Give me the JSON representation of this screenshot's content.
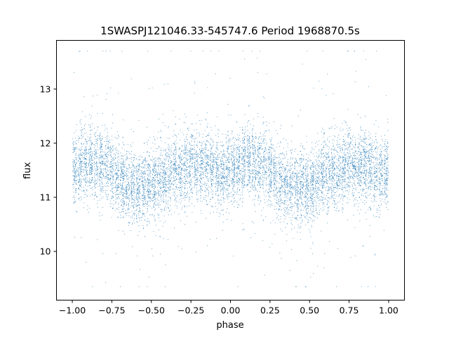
{
  "chart_data": {
    "type": "scatter",
    "title": "1SWASPJ121046.33-545747.6 Period 1968870.5s",
    "xlabel": "phase",
    "ylabel": "flux",
    "xlim": [
      -1.1,
      1.1
    ],
    "ylim": [
      9.1,
      13.9
    ],
    "x_ticks": [
      -1.0,
      -0.75,
      -0.5,
      -0.25,
      0.0,
      0.25,
      0.5,
      0.75,
      1.0
    ],
    "x_tick_labels": [
      "−1.00",
      "−0.75",
      "−0.50",
      "−0.25",
      "0.00",
      "0.25",
      "0.50",
      "0.75",
      "1.00"
    ],
    "y_ticks": [
      10,
      11,
      12,
      13
    ],
    "y_tick_labels": [
      "10",
      "11",
      "12",
      "13"
    ],
    "grid": false,
    "legend": "none",
    "marker_color": "#1f77b4",
    "series": [
      {
        "phase_range": [
          -1.0,
          1.0
        ],
        "approx_point_count": 12000,
        "sampled_points": [
          [
            -1.0,
            11.5
          ],
          [
            -0.95,
            11.6
          ],
          [
            -0.9,
            11.7
          ],
          [
            -0.85,
            11.6
          ],
          [
            -0.8,
            11.6
          ],
          [
            -0.75,
            11.5
          ],
          [
            -0.7,
            11.3
          ],
          [
            -0.65,
            11.2
          ],
          [
            -0.6,
            11.2
          ],
          [
            -0.55,
            11.2
          ],
          [
            -0.5,
            11.2
          ],
          [
            -0.45,
            11.3
          ],
          [
            -0.4,
            11.4
          ],
          [
            -0.35,
            11.5
          ],
          [
            -0.3,
            11.5
          ],
          [
            -0.25,
            11.6
          ],
          [
            -0.2,
            11.6
          ],
          [
            -0.15,
            11.6
          ],
          [
            -0.1,
            11.5
          ],
          [
            -0.05,
            11.4
          ],
          [
            0.0,
            11.5
          ],
          [
            0.05,
            11.6
          ],
          [
            0.1,
            11.7
          ],
          [
            0.15,
            11.6
          ],
          [
            0.2,
            11.6
          ],
          [
            0.25,
            11.5
          ],
          [
            0.3,
            11.3
          ],
          [
            0.35,
            11.2
          ],
          [
            0.4,
            11.2
          ],
          [
            0.45,
            11.2
          ],
          [
            0.5,
            11.2
          ],
          [
            0.55,
            11.3
          ],
          [
            0.6,
            11.4
          ],
          [
            0.65,
            11.5
          ],
          [
            0.7,
            11.5
          ],
          [
            0.75,
            11.6
          ],
          [
            0.8,
            11.6
          ],
          [
            0.85,
            11.6
          ],
          [
            0.9,
            11.5
          ],
          [
            0.95,
            11.4
          ],
          [
            1.0,
            11.5
          ]
        ],
        "typical_spread": 0.45
      }
    ]
  }
}
